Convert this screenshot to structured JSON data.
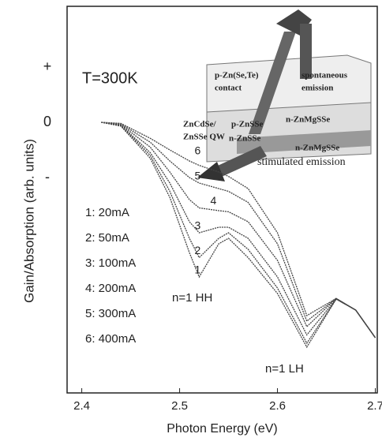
{
  "chart_data": {
    "type": "line",
    "annotation_title": "T=300K",
    "x_label": "Photon Energy (eV)",
    "y_label": "Gain/Absorption (arb. units)",
    "xlim": [
      2.385,
      2.702
    ],
    "xticks": [
      2.4,
      2.5,
      2.6,
      2.7
    ],
    "ylim": [
      -4.9,
      2.1
    ],
    "yticks": [
      {
        "value": 1,
        "label": "+"
      },
      0,
      {
        "value": -1,
        "label": "-"
      }
    ],
    "grid": false,
    "x": [
      2.42,
      2.44,
      2.47,
      2.49,
      2.51,
      2.52,
      2.54,
      2.55,
      2.57,
      2.6,
      2.63,
      2.66,
      2.68,
      2.7
    ],
    "series": [
      {
        "name": "1",
        "label": "1: 20mA",
        "color": "#444",
        "values": [
          0,
          -0.07,
          -0.65,
          -1.36,
          -2.36,
          -2.8,
          -2.2,
          -2.1,
          -2.45,
          -3.1,
          -4.07,
          -3.2,
          -3.4,
          -3.9
        ]
      },
      {
        "name": "2",
        "label": "2: 50mA",
        "color": "#444",
        "values": [
          0,
          -0.06,
          -0.6,
          -1.25,
          -2.1,
          -2.45,
          -2.1,
          -2.0,
          -2.3,
          -3.0,
          -4.0,
          -3.2,
          -3.4,
          -3.9
        ]
      },
      {
        "name": "3",
        "label": "3: 100mA",
        "color": "#444",
        "values": [
          0,
          -0.05,
          -0.55,
          -1.1,
          -1.8,
          -2.0,
          -1.9,
          -1.9,
          -2.1,
          -2.8,
          -3.85,
          -3.2,
          -3.4,
          -3.9
        ]
      },
      {
        "name": "4",
        "label": "4: 200mA",
        "color": "#444",
        "values": [
          0,
          -0.04,
          -0.45,
          -0.9,
          -1.4,
          -1.55,
          -1.6,
          -1.62,
          -1.8,
          -2.5,
          -3.7,
          -3.19,
          -3.4,
          -3.9
        ]
      },
      {
        "name": "5",
        "label": "5: 300mA",
        "color": "#444",
        "values": [
          0,
          -0.03,
          -0.36,
          -0.7,
          -1.0,
          -1.1,
          -1.2,
          -1.25,
          -1.45,
          -2.2,
          -3.6,
          -3.19,
          -3.4,
          -3.9
        ]
      },
      {
        "name": "6",
        "label": "6: 400mA",
        "color": "#444",
        "values": [
          0,
          -0.02,
          -0.29,
          -0.5,
          -0.7,
          -0.78,
          -0.9,
          -0.98,
          -1.2,
          -2.0,
          -3.5,
          -3.19,
          -3.4,
          -3.9
        ]
      }
    ],
    "annotations": [
      "n=1 HH",
      "n=1 LH"
    ],
    "inset": [
      "p-Zn(Se,Te)",
      "contact",
      "spontaneous",
      "emission",
      "ZnCdSe/",
      "ZnSSe QW",
      "p-ZnSSe",
      "n-ZnMgSSe",
      "n-ZnSSe",
      "n-ZnMgSSe",
      "stimulated emission"
    ]
  }
}
